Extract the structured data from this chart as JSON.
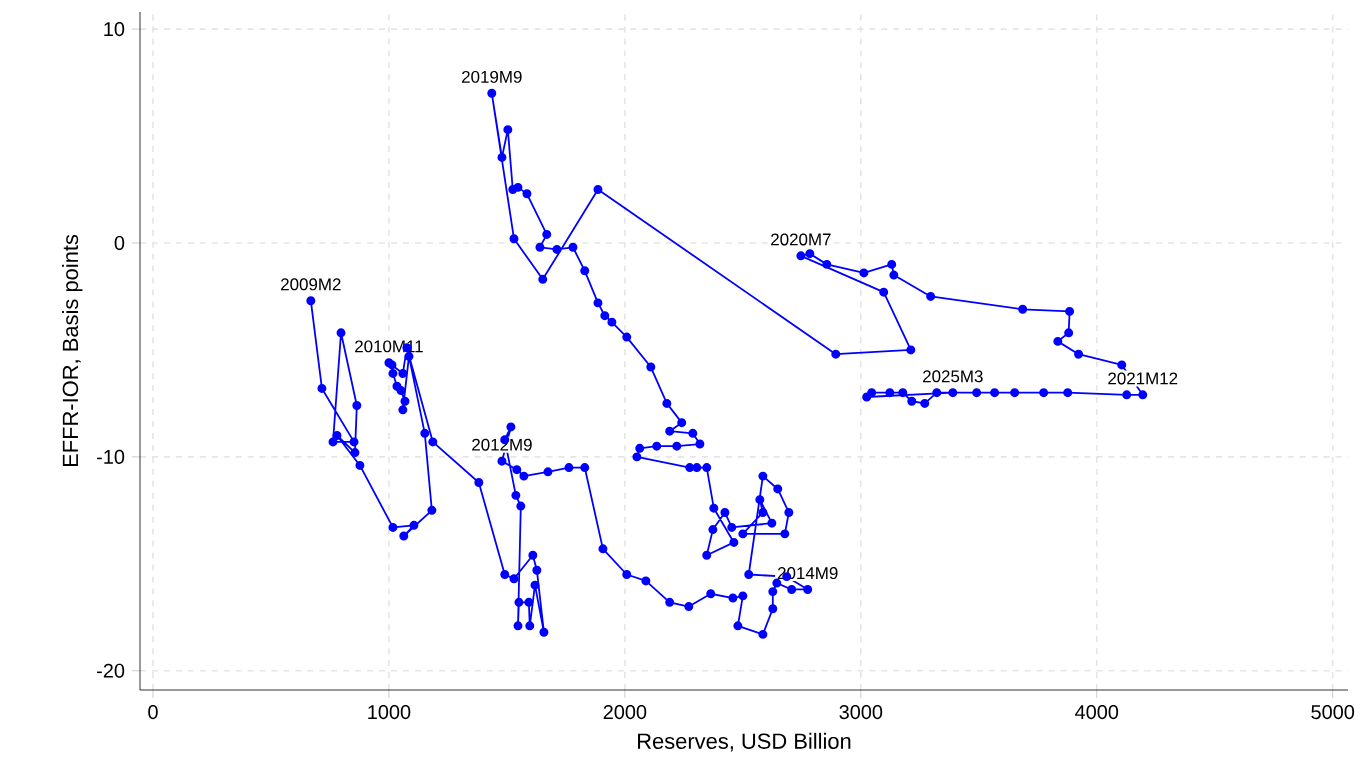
{
  "chart_data": {
    "type": "line",
    "xlabel": "Reserves, USD Billion",
    "ylabel": "EFFR-IOR, Basis points",
    "x": [
      669,
      716,
      852,
      763,
      797,
      864,
      856,
      780,
      877,
      1017,
      1106,
      1063,
      1182,
      1152,
      1085,
      1059,
      1068,
      1051,
      1034,
      1017,
      1013,
      1000,
      1059,
      1076,
      1186,
      1381,
      1491,
      1530,
      1610,
      1627,
      1657,
      1619,
      1597,
      1593,
      1551,
      1547,
      1559,
      1538,
      1491,
      1517,
      1479,
      1542,
      1572,
      1674,
      1763,
      1830,
      1907,
      2008,
      2089,
      2190,
      2271,
      2364,
      2458,
      2500,
      2479,
      2585,
      2627,
      2627,
      2644,
      2707,
      2775,
      2686,
      2525,
      2585,
      2648,
      2695,
      2678,
      2500,
      2585,
      2572,
      2623,
      2453,
      2424,
      2373,
      2347,
      2462,
      2377,
      2347,
      2305,
      2275,
      2051,
      2063,
      2135,
      2220,
      2318,
      2288,
      2190,
      2241,
      2178,
      2110,
      2008,
      1945,
      1915,
      1886,
      1830,
      1780,
      1712,
      1640,
      1669,
      1585,
      1547,
      1525,
      1504,
      1479,
      1436,
      1530,
      1652,
      1886,
      2894,
      3212,
      3097,
      2746,
      2784,
      2856,
      3013,
      3131,
      3140,
      3296,
      3686,
      3885,
      3881,
      3835,
      3923,
      4106,
      4195,
      4127,
      3877,
      3775,
      3652,
      3567,
      3491,
      3322,
      3271,
      3216,
      3178,
      3123,
      3046,
      3025,
      3390
    ],
    "values": [
      -2.7,
      -6.8,
      -9.3,
      -9.3,
      -4.2,
      -7.6,
      -9.8,
      -9.0,
      -10.4,
      -13.3,
      -13.2,
      -13.7,
      -12.5,
      -8.9,
      -5.3,
      -7.8,
      -7.4,
      -6.9,
      -6.7,
      -6.1,
      -5.7,
      -5.6,
      -6.1,
      -4.9,
      -9.3,
      -11.2,
      -15.5,
      -15.7,
      -14.6,
      -15.3,
      -18.2,
      -16.0,
      -17.9,
      -16.8,
      -16.8,
      -17.9,
      -12.3,
      -11.8,
      -9.2,
      -8.6,
      -10.2,
      -10.6,
      -10.9,
      -10.7,
      -10.5,
      -10.5,
      -14.3,
      -15.5,
      -15.8,
      -16.8,
      -17.0,
      -16.4,
      -16.6,
      -16.5,
      -17.9,
      -18.3,
      -17.1,
      -16.3,
      -15.9,
      -16.2,
      -16.2,
      -15.6,
      -15.5,
      -10.9,
      -11.5,
      -12.6,
      -13.6,
      -13.6,
      -12.6,
      -12.0,
      -13.1,
      -13.3,
      -12.6,
      -13.4,
      -14.6,
      -14.0,
      -12.4,
      -10.5,
      -10.5,
      -10.5,
      -10.0,
      -9.6,
      -9.5,
      -9.5,
      -9.4,
      -8.9,
      -8.8,
      -8.4,
      -7.5,
      -5.8,
      -4.4,
      -3.7,
      -3.4,
      -2.8,
      -1.3,
      -0.2,
      -0.3,
      -0.2,
      0.4,
      2.3,
      2.6,
      2.5,
      5.3,
      4.0,
      7.0,
      0.2,
      -1.7,
      2.5,
      -5.2,
      -5.0,
      -2.3,
      -0.6,
      -0.5,
      -1.0,
      -1.4,
      -1.0,
      -1.5,
      -2.5,
      -3.1,
      -3.2,
      -4.2,
      -4.6,
      -5.2,
      -5.7,
      -7.1,
      -7.1,
      -7.0,
      -7.0,
      -7.0,
      -7.0,
      -7.0,
      -7.0,
      -7.5,
      -7.4,
      -7.0,
      -7.0,
      -7.0,
      -7.2,
      -7.0
    ],
    "color": "#0000ff",
    "marker": "circle",
    "line_style": "solid",
    "grid": true,
    "xlim": [
      -55,
      5065
    ],
    "ylim": [
      -20.9,
      10.8
    ],
    "xticks": [
      0,
      1000,
      2000,
      3000,
      4000,
      5000
    ],
    "yticks": [
      -20,
      -10,
      0,
      10
    ],
    "annotations": [
      {
        "text": "2009M2",
        "x": 669,
        "y": -2.7
      },
      {
        "text": "2010M11",
        "x": 1000,
        "y": -5.6
      },
      {
        "text": "2012M9",
        "x": 1479,
        "y": -10.2
      },
      {
        "text": "2014M9",
        "x": 2775,
        "y": -16.2
      },
      {
        "text": "2019M9",
        "x": 1436,
        "y": 7.0
      },
      {
        "text": "2020M7",
        "x": 2746,
        "y": -0.6
      },
      {
        "text": "2021M12",
        "x": 4195,
        "y": -7.1
      },
      {
        "text": "2025M3",
        "x": 3390,
        "y": -7.0
      }
    ]
  }
}
